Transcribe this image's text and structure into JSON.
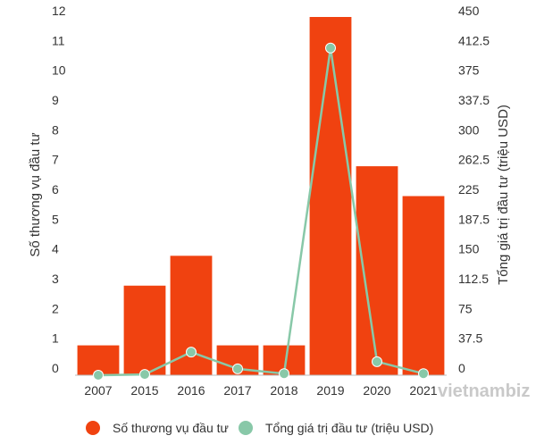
{
  "chart_data": {
    "type": "bar",
    "categories": [
      "2007",
      "2015",
      "2016",
      "2017",
      "2018",
      "2019",
      "2020",
      "2021"
    ],
    "series": [
      {
        "name": "Số thương vụ đầu tư",
        "type": "bar",
        "axis": "left",
        "color": "#f04210",
        "values": [
          1,
          3,
          4,
          1,
          1,
          12,
          7,
          6
        ]
      },
      {
        "name": "Tổng giá trị đầu tư (triệu USD)",
        "type": "line",
        "axis": "right",
        "color": "#88c8a8",
        "values": [
          0,
          1,
          29,
          8,
          2,
          411,
          17,
          2
        ]
      }
    ],
    "ylabel": "Số thương vụ đầu tư",
    "y2label": "Tổng giá trị đầu tư (triệu USD)",
    "ylim": [
      0,
      12
    ],
    "y2lim": [
      0,
      450
    ],
    "yticks": [
      "0",
      "1",
      "2",
      "3",
      "4",
      "5",
      "6",
      "7",
      "8",
      "9",
      "10",
      "11",
      "12"
    ],
    "y2ticks": [
      "0",
      "37.5",
      "75",
      "112.5",
      "150",
      "187.5",
      "225",
      "262.5",
      "300",
      "337.5",
      "375",
      "412.5",
      "450"
    ],
    "grid": false,
    "legend_position": "bottom"
  },
  "watermark": "vietnambiz"
}
